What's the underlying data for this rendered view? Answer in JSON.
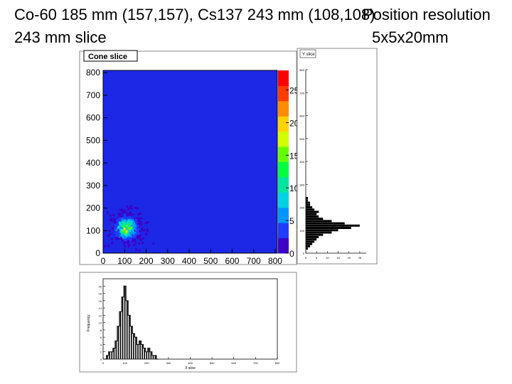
{
  "slide": {
    "title_line1": "Co-60 185 mm (157,157), Cs137 243 mm (108,108)",
    "title_line2": "243 mm slice",
    "note_line1": "Position resolution",
    "note_line2": "5x5x20mm"
  },
  "colors": {
    "map_background": "#1c28e6",
    "bars": "#000000",
    "palette": [
      "#3d00c8",
      "#1f3cff",
      "#0096ff",
      "#00d2e6",
      "#00e6a0",
      "#00ff40",
      "#66ff00",
      "#d2ff00",
      "#ffd200",
      "#ff8c00",
      "#ff3c00",
      "#ff0000"
    ]
  },
  "chart_data": [
    {
      "type": "heatmap",
      "title": "Cone slice",
      "x_ticks": [
        0,
        100,
        200,
        300,
        400,
        500,
        600,
        700,
        800
      ],
      "y_ticks": [
        0,
        100,
        200,
        300,
        400,
        500,
        600,
        700,
        800
      ],
      "xlim": [
        0,
        810
      ],
      "ylim": [
        0,
        810
      ],
      "z_ticks": [
        0,
        5,
        10,
        15,
        20,
        25
      ],
      "zlim": [
        0,
        28
      ],
      "hotspot": {
        "x": 105,
        "y": 115,
        "peak": 20
      }
    },
    {
      "type": "bar",
      "xlabel": "Y slice",
      "y_ticks": [
        0,
        100,
        200,
        300,
        400,
        500,
        600,
        700,
        800
      ],
      "x_ticks": [
        0,
        5,
        10,
        15,
        20,
        25
      ],
      "xlim": [
        0,
        28
      ],
      "values": [
        {
          "y": 10,
          "v": 0
        },
        {
          "y": 20,
          "v": 1
        },
        {
          "y": 30,
          "v": 2
        },
        {
          "y": 40,
          "v": 3
        },
        {
          "y": 50,
          "v": 4
        },
        {
          "y": 60,
          "v": 5
        },
        {
          "y": 70,
          "v": 6
        },
        {
          "y": 80,
          "v": 8
        },
        {
          "y": 90,
          "v": 12
        },
        {
          "y": 100,
          "v": 15
        },
        {
          "y": 110,
          "v": 21
        },
        {
          "y": 120,
          "v": 25
        },
        {
          "y": 130,
          "v": 18
        },
        {
          "y": 140,
          "v": 12
        },
        {
          "y": 150,
          "v": 8
        },
        {
          "y": 160,
          "v": 6
        },
        {
          "y": 170,
          "v": 5
        },
        {
          "y": 180,
          "v": 6
        },
        {
          "y": 190,
          "v": 4
        },
        {
          "y": 200,
          "v": 3
        },
        {
          "y": 210,
          "v": 2
        },
        {
          "y": 220,
          "v": 2
        },
        {
          "y": 230,
          "v": 1
        },
        {
          "y": 240,
          "v": 1
        },
        {
          "y": 250,
          "v": 0
        }
      ]
    },
    {
      "type": "bar",
      "xlabel": "X slice",
      "ylabel": "Frequency",
      "x_ticks": [
        0,
        100,
        200,
        300,
        400,
        500,
        600,
        700,
        800
      ],
      "y_ticks": [
        0,
        2,
        4,
        6,
        8,
        10,
        12,
        14,
        16,
        18,
        20
      ],
      "ylim": [
        0,
        22
      ],
      "values": [
        {
          "x": 10,
          "v": 0
        },
        {
          "x": 20,
          "v": 1
        },
        {
          "x": 30,
          "v": 2
        },
        {
          "x": 40,
          "v": 2
        },
        {
          "x": 50,
          "v": 3
        },
        {
          "x": 60,
          "v": 5
        },
        {
          "x": 70,
          "v": 9
        },
        {
          "x": 80,
          "v": 13
        },
        {
          "x": 90,
          "v": 17
        },
        {
          "x": 100,
          "v": 20
        },
        {
          "x": 110,
          "v": 16
        },
        {
          "x": 120,
          "v": 12
        },
        {
          "x": 130,
          "v": 9
        },
        {
          "x": 140,
          "v": 7
        },
        {
          "x": 150,
          "v": 6
        },
        {
          "x": 160,
          "v": 4
        },
        {
          "x": 170,
          "v": 5
        },
        {
          "x": 180,
          "v": 4
        },
        {
          "x": 190,
          "v": 3
        },
        {
          "x": 200,
          "v": 2
        },
        {
          "x": 210,
          "v": 3
        },
        {
          "x": 220,
          "v": 2
        },
        {
          "x": 230,
          "v": 1
        },
        {
          "x": 240,
          "v": 1
        },
        {
          "x": 250,
          "v": 0
        }
      ]
    }
  ]
}
